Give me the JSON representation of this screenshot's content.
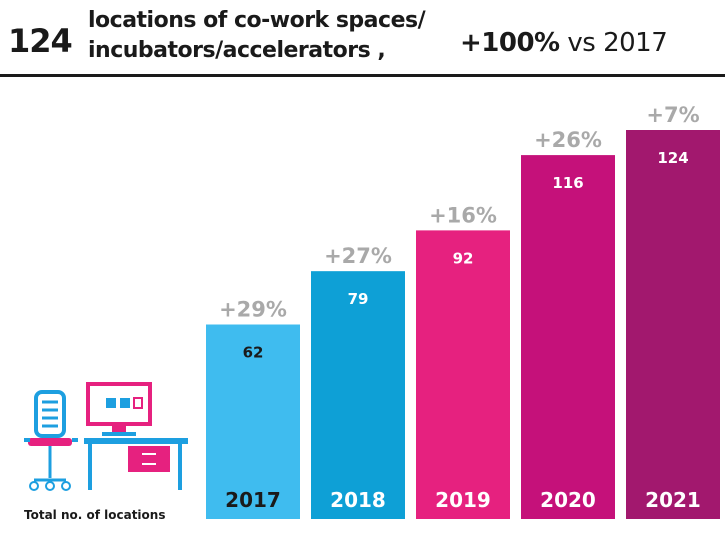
{
  "header": {
    "big_number": "124",
    "title_line1": "locations of co-work spaces/",
    "title_line2": "incubators/accelerators ,",
    "growth_bold": "+100%",
    "growth_rest": " vs 2017"
  },
  "caption": "Total no. of locations",
  "icons": {
    "desk": "desk-computer-chair-icon"
  },
  "chart_data": {
    "type": "bar",
    "title": "",
    "xlabel": "",
    "ylabel": "Total no. of locations",
    "categories": [
      "2017",
      "2018",
      "2019",
      "2020",
      "2021"
    ],
    "values": [
      62,
      79,
      92,
      116,
      124
    ],
    "labels": [
      "62",
      "79",
      "92",
      "116",
      "124"
    ],
    "changes": [
      "+29%",
      "+27%",
      "+16%",
      "+26%",
      "+7%"
    ],
    "colors": [
      "#3fbcef",
      "#0ea0d6",
      "#e6217f",
      "#c5117a",
      "#a2186e"
    ],
    "label_colors": [
      "#1a1a1a",
      "#ffffff",
      "#ffffff",
      "#ffffff",
      "#ffffff"
    ],
    "ylim": [
      0,
      124
    ],
    "grid": false,
    "legend": "none"
  }
}
